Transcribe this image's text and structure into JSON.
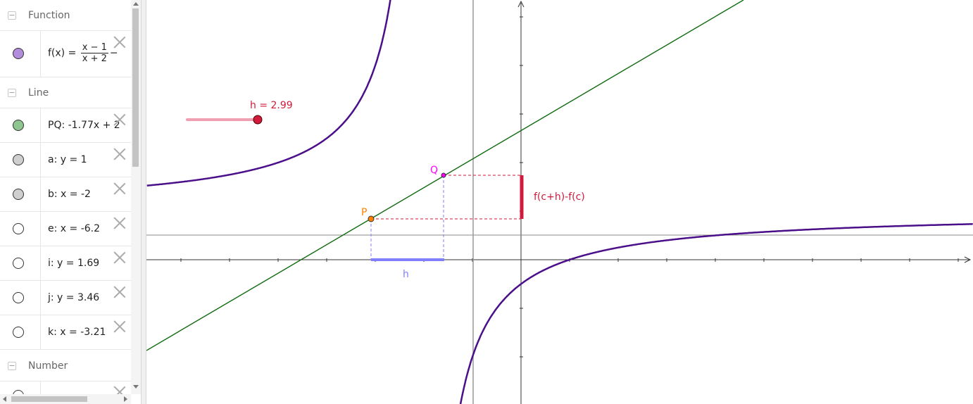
{
  "algebra": {
    "categories": [
      {
        "label": "Function"
      },
      {
        "label": "Line"
      },
      {
        "label": "Number"
      }
    ],
    "collapse_glyph": "−",
    "function_row": {
      "name": "f(x)",
      "equals": "=",
      "numerator": "x − 1",
      "denominator": "x + 2",
      "trailing": "−",
      "color": "#b28ddb"
    },
    "line_rows": [
      {
        "text": "PQ: -1.77x + 2",
        "color": "#8fc58f",
        "visible": true
      },
      {
        "text": "a: y = 1",
        "color": "#cfcfcf",
        "visible": true
      },
      {
        "text": "b: x = -2",
        "color": "#cfcfcf",
        "visible": true
      },
      {
        "text": "e: x = -6.2",
        "color": "#ffffff",
        "visible": false
      },
      {
        "text": "i: y = 1.69",
        "color": "#ffffff",
        "visible": false
      },
      {
        "text": "j: y = 3.46",
        "color": "#ffffff",
        "visible": false
      },
      {
        "text": "k: x = -3.21",
        "color": "#ffffff",
        "visible": false
      }
    ]
  },
  "graphics": {
    "slider_label": "h = 2.99",
    "slider_value": 2.99,
    "point_P_label": "P",
    "point_Q_label": "Q",
    "h_label": "h",
    "diff_label": "f(c+h)-f(c)",
    "colors": {
      "curve": "#4b0f8a",
      "tangent": "#0f6b0f",
      "slider": "#f0a0b0",
      "slider_knob": "#d11a3b",
      "point_P": "#ff7f00",
      "point_Q": "#ff00ff",
      "h_segment": "#8080ff",
      "diff_segment": "#d11a3b",
      "axis": "#333333"
    }
  }
}
